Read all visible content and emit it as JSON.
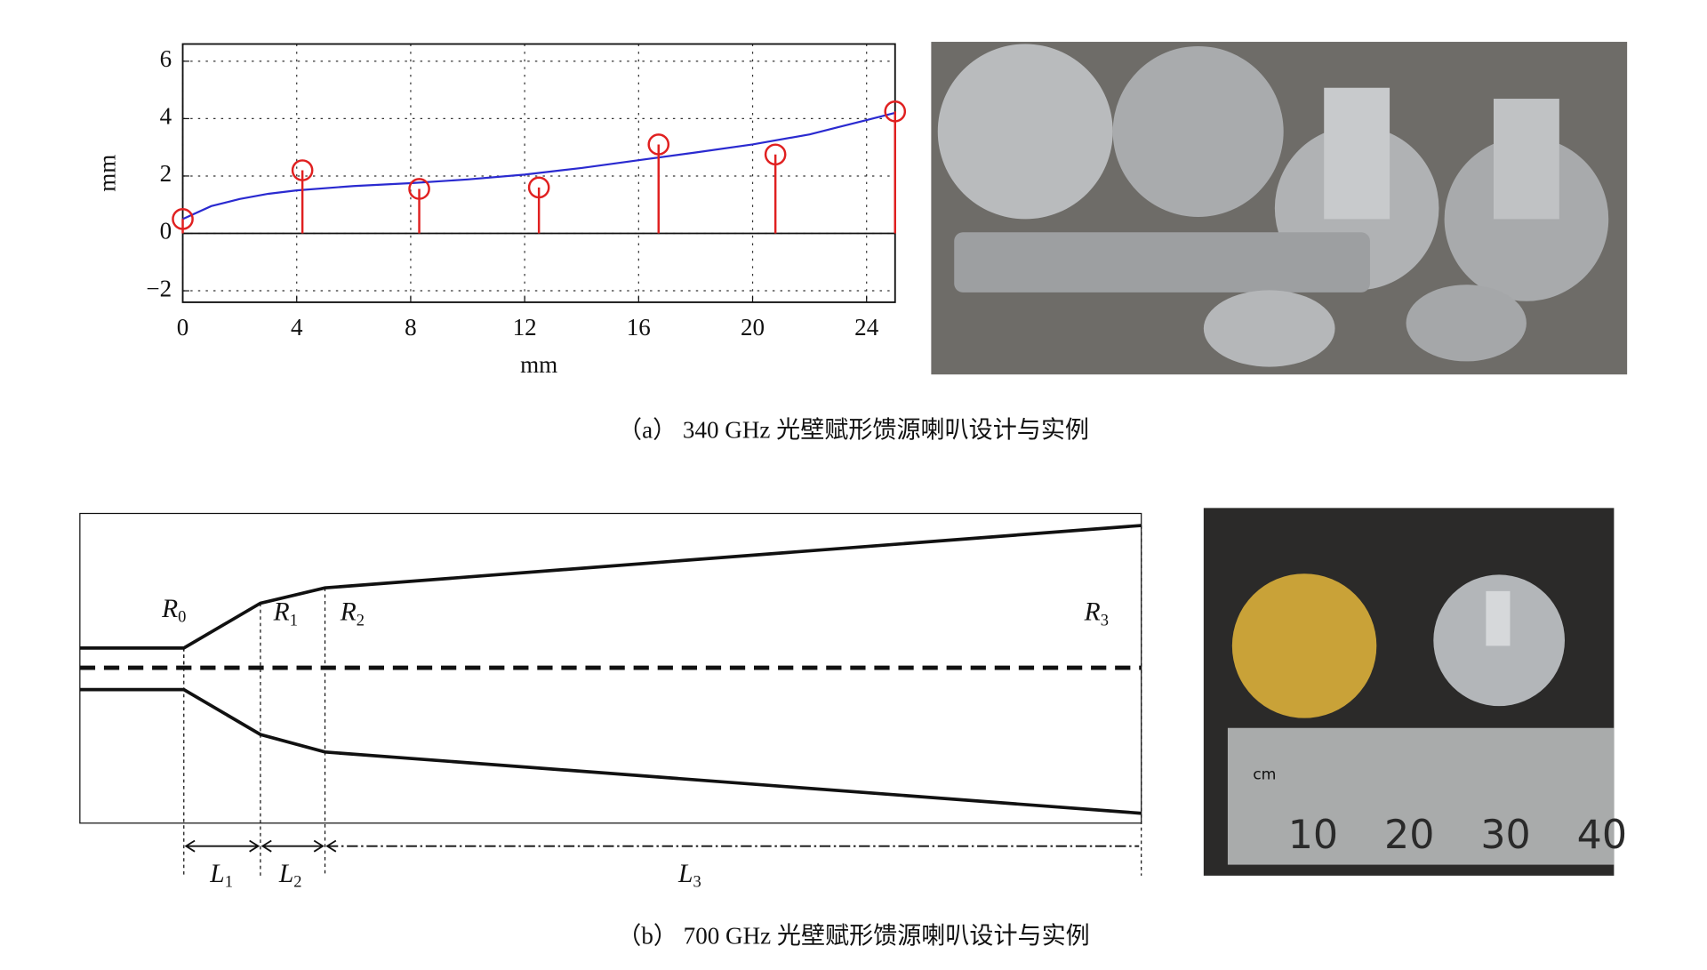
{
  "chart_data": {
    "type": "stem",
    "x_label": "mm",
    "y_label": "mm",
    "stems": {
      "color": "#e02020",
      "x": [
        0,
        4.2,
        8.3,
        12.5,
        16.7,
        20.8,
        25
      ],
      "values": [
        0.5,
        2.2,
        1.55,
        1.6,
        3.1,
        2.75,
        4.25
      ]
    },
    "curve": {
      "color": "#2a2ad0",
      "x": [
        0,
        1,
        2,
        3,
        4,
        6,
        8,
        10,
        12,
        14,
        16,
        18,
        20,
        22,
        23,
        24,
        25
      ],
      "values": [
        0.5,
        0.95,
        1.2,
        1.38,
        1.5,
        1.65,
        1.75,
        1.88,
        2.05,
        2.28,
        2.55,
        2.82,
        3.1,
        3.45,
        3.7,
        3.95,
        4.2
      ]
    },
    "xlim": [
      0,
      25
    ],
    "ylim": [
      -2.4,
      6.6
    ],
    "xticks": [
      0,
      4,
      8,
      12,
      16,
      20,
      24
    ],
    "yticks": [
      {
        "value": -2,
        "label": "−2"
      },
      0,
      2,
      4,
      6
    ],
    "grid": true
  },
  "caption_a": "（a）  340 GHz 光壁赋形馈源喇叭设计与实例",
  "caption_b": "（b）  700 GHz 光壁赋形馈源喇叭设计与实例",
  "diagram": {
    "radii": [
      {
        "letter": "R",
        "sub": "0"
      },
      {
        "letter": "R",
        "sub": "1"
      },
      {
        "letter": "R",
        "sub": "2"
      },
      {
        "letter": "R",
        "sub": "3"
      }
    ],
    "lengths": [
      {
        "letter": "L",
        "sub": "1"
      },
      {
        "letter": "L",
        "sub": "2"
      },
      {
        "letter": "L",
        "sub": "3"
      }
    ]
  },
  "photo_b": {
    "ruler_unit": "cm",
    "ruler_labels": [
      "10",
      "20",
      "30",
      "40"
    ]
  }
}
